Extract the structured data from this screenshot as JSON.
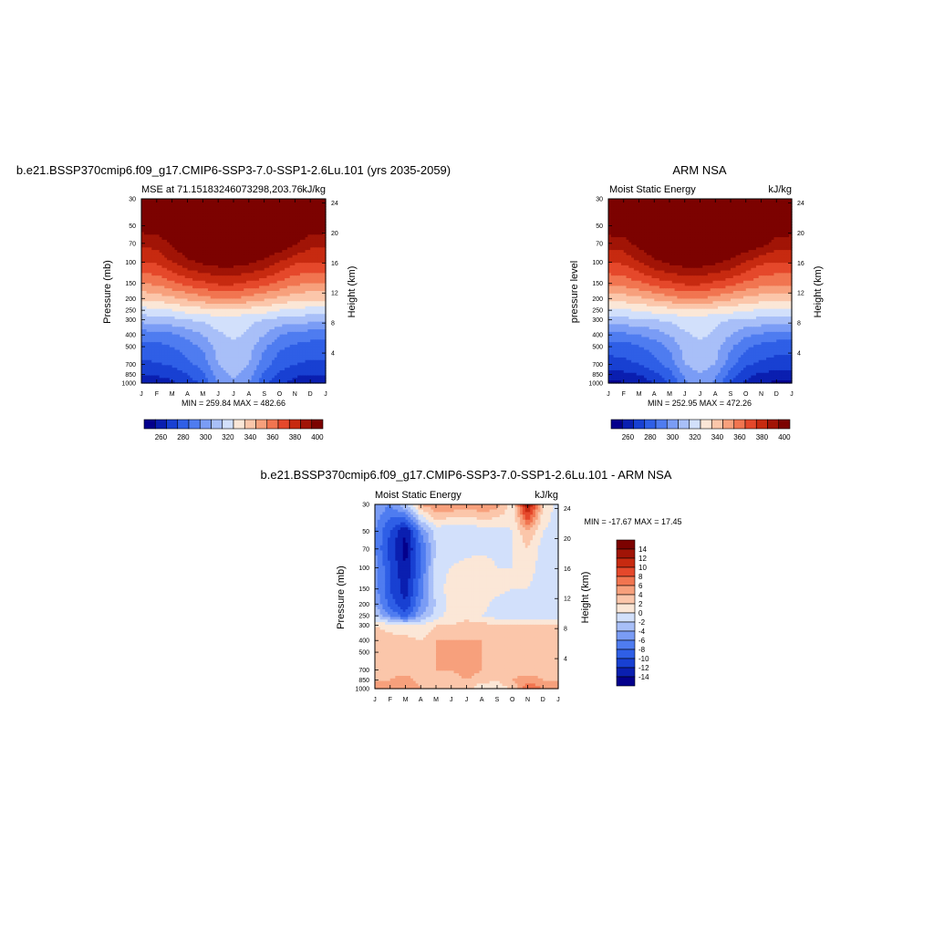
{
  "months": [
    "J",
    "F",
    "M",
    "A",
    "M",
    "J",
    "J",
    "A",
    "S",
    "O",
    "N",
    "D",
    "J"
  ],
  "pressure_ticks": [
    30,
    50,
    70,
    100,
    150,
    200,
    250,
    300,
    400,
    500,
    700,
    850,
    1000
  ],
  "height_ticks": [
    4,
    8,
    12,
    16,
    20,
    24
  ],
  "colors": {
    "mse": [
      "#04008c",
      "#0a1fb0",
      "#1840d2",
      "#2f5fe6",
      "#4f7cf0",
      "#7a9cf5",
      "#a8bff8",
      "#d2e0fb",
      "#fbe7d7",
      "#fbc6aa",
      "#f7a07c",
      "#f17550",
      "#e5482b",
      "#c72a10",
      "#a11406",
      "#7c0200"
    ],
    "diff": [
      "#04008c",
      "#0a1fb0",
      "#1840d2",
      "#2f5fe6",
      "#4f7cf0",
      "#7a9cf5",
      "#a8bff8",
      "#d2e0fb",
      "#fbe7d7",
      "#fbc6aa",
      "#f7a07c",
      "#f17550",
      "#e5482b",
      "#c72a10",
      "#a11406",
      "#7c0200"
    ]
  },
  "panels": {
    "model": {
      "title": "b.e21.BSSP370cmip6.f09_g17.CMIP6-SSP3-7.0-SSP1-2.6Lu.101 (yrs 2035-2059)",
      "left_string": "MSE at 71.15183246073298,203.76",
      "right_string": "kJ/kg",
      "ylabel_left": "Pressure (mb)",
      "ylabel_right": "Height (km)",
      "stats": "MIN = 259.84 MAX = 482.66",
      "colorbar_labels": [
        "260",
        "280",
        "300",
        "320",
        "340",
        "360",
        "380",
        "400"
      ]
    },
    "obs": {
      "title": "ARM NSA",
      "left_string": "Moist Static Energy",
      "right_string": "kJ/kg",
      "ylabel_left": "pressure level",
      "ylabel_right": "Height (km)",
      "stats": "MIN = 252.95 MAX = 472.26",
      "colorbar_labels": [
        "260",
        "280",
        "300",
        "320",
        "340",
        "360",
        "380",
        "400"
      ]
    },
    "diff": {
      "title": "b.e21.BSSP370cmip6.f09_g17.CMIP6-SSP3-7.0-SSP1-2.6Lu.101 - ARM NSA",
      "left_string": "Moist Static Energy",
      "right_string": "kJ/kg",
      "ylabel_left": "Pressure (mb)",
      "ylabel_right": "Height (km)",
      "stats": "MIN = -17.67 MAX =  17.45",
      "colorbar_labels": [
        "14",
        "12",
        "10",
        "8",
        "6",
        "4",
        "2",
        "0",
        "-2",
        "-4",
        "-6",
        "-8",
        "-10",
        "-12",
        "-14"
      ]
    }
  },
  "chart_data": [
    {
      "type": "heatmap",
      "title": "b.e21.BSSP370cmip6.f09_g17.CMIP6-SSP3-7.0-SSP1-2.6Lu.101 (yrs 2035-2059)",
      "subtitle": "MSE at 71.15183246073298,203.76",
      "units": "kJ/kg",
      "x": [
        "J",
        "F",
        "M",
        "A",
        "M",
        "J",
        "J",
        "A",
        "S",
        "O",
        "N",
        "D",
        "J"
      ],
      "y": [
        30,
        50,
        70,
        100,
        150,
        200,
        250,
        300,
        400,
        500,
        700,
        850,
        1000
      ],
      "ylabel": "Pressure (mb)",
      "ylabel_right": "Height (km)",
      "values": [
        [
          410,
          410,
          410,
          410,
          410,
          410,
          410,
          410,
          410,
          410,
          410,
          410,
          410
        ],
        [
          406,
          406,
          410,
          410,
          410,
          410,
          410,
          410,
          410,
          410,
          410,
          406,
          406
        ],
        [
          392,
          394,
          402,
          410,
          410,
          410,
          410,
          410,
          410,
          410,
          402,
          394,
          392
        ],
        [
          380,
          382,
          390,
          398,
          402,
          405,
          405,
          402,
          398,
          390,
          382,
          380,
          380
        ],
        [
          360,
          362,
          368,
          374,
          378,
          382,
          382,
          378,
          374,
          368,
          362,
          360,
          360
        ],
        [
          342,
          344,
          348,
          352,
          356,
          360,
          360,
          356,
          352,
          348,
          344,
          342,
          342
        ],
        [
          326,
          327,
          330,
          334,
          336,
          338,
          338,
          336,
          334,
          330,
          327,
          326,
          326
        ],
        [
          314,
          315,
          317,
          320,
          322,
          326,
          326,
          322,
          320,
          317,
          315,
          314,
          314
        ],
        [
          294,
          295,
          298,
          303,
          310,
          318,
          322,
          318,
          310,
          300,
          296,
          294,
          294
        ],
        [
          286,
          287,
          290,
          295,
          302,
          314,
          318,
          314,
          302,
          292,
          288,
          286,
          286
        ],
        [
          278,
          279,
          281,
          287,
          294,
          310,
          316,
          310,
          294,
          284,
          280,
          278,
          278
        ],
        [
          270,
          271,
          274,
          280,
          288,
          304,
          312,
          304,
          288,
          278,
          272,
          270,
          270
        ],
        [
          264,
          265,
          268,
          274,
          282,
          300,
          308,
          300,
          282,
          272,
          266,
          264,
          264
        ]
      ],
      "stats": "MIN = 259.84 MAX = 482.66",
      "colorbar": {
        "min": 250,
        "max": 410,
        "step": 10,
        "labels": [
          "260",
          "280",
          "300",
          "320",
          "340",
          "360",
          "380",
          "400"
        ]
      }
    },
    {
      "type": "heatmap",
      "title": "ARM NSA",
      "subtitle": "Moist Static Energy",
      "units": "kJ/kg",
      "x": [
        "J",
        "F",
        "M",
        "A",
        "M",
        "J",
        "J",
        "A",
        "S",
        "O",
        "N",
        "D",
        "J"
      ],
      "y": [
        30,
        50,
        70,
        100,
        150,
        200,
        250,
        300,
        400,
        500,
        700,
        850,
        1000
      ],
      "ylabel": "pressure level",
      "ylabel_right": "Height (km)",
      "values": [
        [
          410,
          410,
          410,
          410,
          410,
          410,
          410,
          410,
          410,
          410,
          410,
          410,
          410
        ],
        [
          408,
          408,
          410,
          410,
          410,
          410,
          410,
          410,
          410,
          410,
          410,
          408,
          408
        ],
        [
          394,
          396,
          404,
          410,
          410,
          410,
          410,
          410,
          410,
          410,
          404,
          396,
          394
        ],
        [
          380,
          382,
          390,
          398,
          402,
          406,
          406,
          402,
          398,
          390,
          382,
          380,
          380
        ],
        [
          362,
          364,
          368,
          374,
          378,
          382,
          382,
          378,
          374,
          368,
          364,
          362,
          362
        ],
        [
          344,
          345,
          348,
          352,
          356,
          360,
          360,
          356,
          352,
          348,
          345,
          344,
          344
        ],
        [
          328,
          329,
          331,
          334,
          336,
          338,
          338,
          336,
          334,
          331,
          329,
          328,
          328
        ],
        [
          316,
          317,
          318,
          320,
          322,
          326,
          326,
          322,
          320,
          318,
          317,
          316,
          316
        ],
        [
          296,
          297,
          300,
          304,
          310,
          318,
          322,
          318,
          310,
          302,
          298,
          296,
          296
        ],
        [
          284,
          285,
          289,
          294,
          302,
          314,
          318,
          314,
          302,
          292,
          287,
          284,
          284
        ],
        [
          276,
          277,
          280,
          286,
          294,
          310,
          316,
          310,
          294,
          282,
          278,
          276,
          276
        ],
        [
          266,
          267,
          270,
          277,
          286,
          302,
          310,
          302,
          286,
          274,
          268,
          266,
          266
        ],
        [
          258,
          259,
          262,
          270,
          280,
          298,
          306,
          298,
          280,
          268,
          260,
          258,
          258
        ]
      ],
      "stats": "MIN = 252.95 MAX = 472.26",
      "colorbar": {
        "min": 250,
        "max": 410,
        "step": 10,
        "labels": [
          "260",
          "280",
          "300",
          "320",
          "340",
          "360",
          "380",
          "400"
        ]
      }
    },
    {
      "type": "heatmap",
      "title": "b.e21.BSSP370cmip6.f09_g17.CMIP6-SSP3-7.0-SSP1-2.6Lu.101 - ARM NSA",
      "subtitle": "Moist Static Energy",
      "units": "kJ/kg",
      "x": [
        "J",
        "F",
        "M",
        "A",
        "M",
        "J",
        "J",
        "A",
        "S",
        "O",
        "N",
        "D",
        "J"
      ],
      "y": [
        30,
        50,
        70,
        100,
        150,
        200,
        250,
        300,
        400,
        500,
        700,
        850,
        1000
      ],
      "ylabel": "Pressure (mb)",
      "ylabel_right": "Height (km)",
      "values": [
        [
          -4,
          -6,
          -2,
          4,
          6,
          6,
          5,
          6,
          5,
          1,
          14,
          2,
          -1
        ],
        [
          -6,
          -10,
          -14,
          -6,
          -1,
          -2,
          -2,
          -1,
          -1,
          0,
          4,
          0,
          -1
        ],
        [
          -6,
          -11,
          -15,
          -8,
          -2,
          -1,
          -1,
          -1,
          -1,
          0,
          2,
          -1,
          -2
        ],
        [
          -5,
          -10,
          -14,
          -8,
          -1,
          0,
          1,
          2,
          0,
          0,
          1,
          -1,
          -2
        ],
        [
          -5,
          -10,
          -13,
          -7,
          -1,
          1,
          2,
          2,
          1,
          0,
          0,
          -1,
          -1
        ],
        [
          -4,
          -9,
          -12,
          -6,
          -2,
          1,
          1,
          1,
          -1,
          -2,
          -1,
          -1,
          -1
        ],
        [
          -2,
          -6,
          -9,
          -4,
          -1,
          1,
          1,
          0,
          -1,
          -1,
          -1,
          -1,
          -1
        ],
        [
          2,
          1,
          0,
          0,
          2,
          2,
          3,
          3,
          2,
          2,
          2,
          2,
          2
        ],
        [
          3,
          3,
          3,
          2,
          4,
          4,
          4,
          4,
          2,
          3,
          3,
          3,
          3
        ],
        [
          3,
          3,
          3,
          3,
          4,
          4,
          5,
          4,
          3,
          3,
          3,
          3,
          3
        ],
        [
          3,
          3,
          3,
          3,
          4,
          4,
          5,
          4,
          3,
          3,
          3,
          3,
          3
        ],
        [
          4,
          4,
          5,
          3,
          4,
          3,
          4,
          3,
          2,
          4,
          5,
          4,
          4
        ],
        [
          5,
          6,
          6,
          4,
          4,
          3,
          3,
          0,
          1,
          2,
          8,
          6,
          6
        ]
      ],
      "stats": "MIN = -17.67 MAX =  17.45",
      "colorbar": {
        "min": -16,
        "max": 16,
        "step": 2,
        "labels": [
          "14",
          "12",
          "10",
          "8",
          "6",
          "4",
          "2",
          "0",
          "-2",
          "-4",
          "-6",
          "-8",
          "-10",
          "-12",
          "-14"
        ]
      }
    }
  ]
}
